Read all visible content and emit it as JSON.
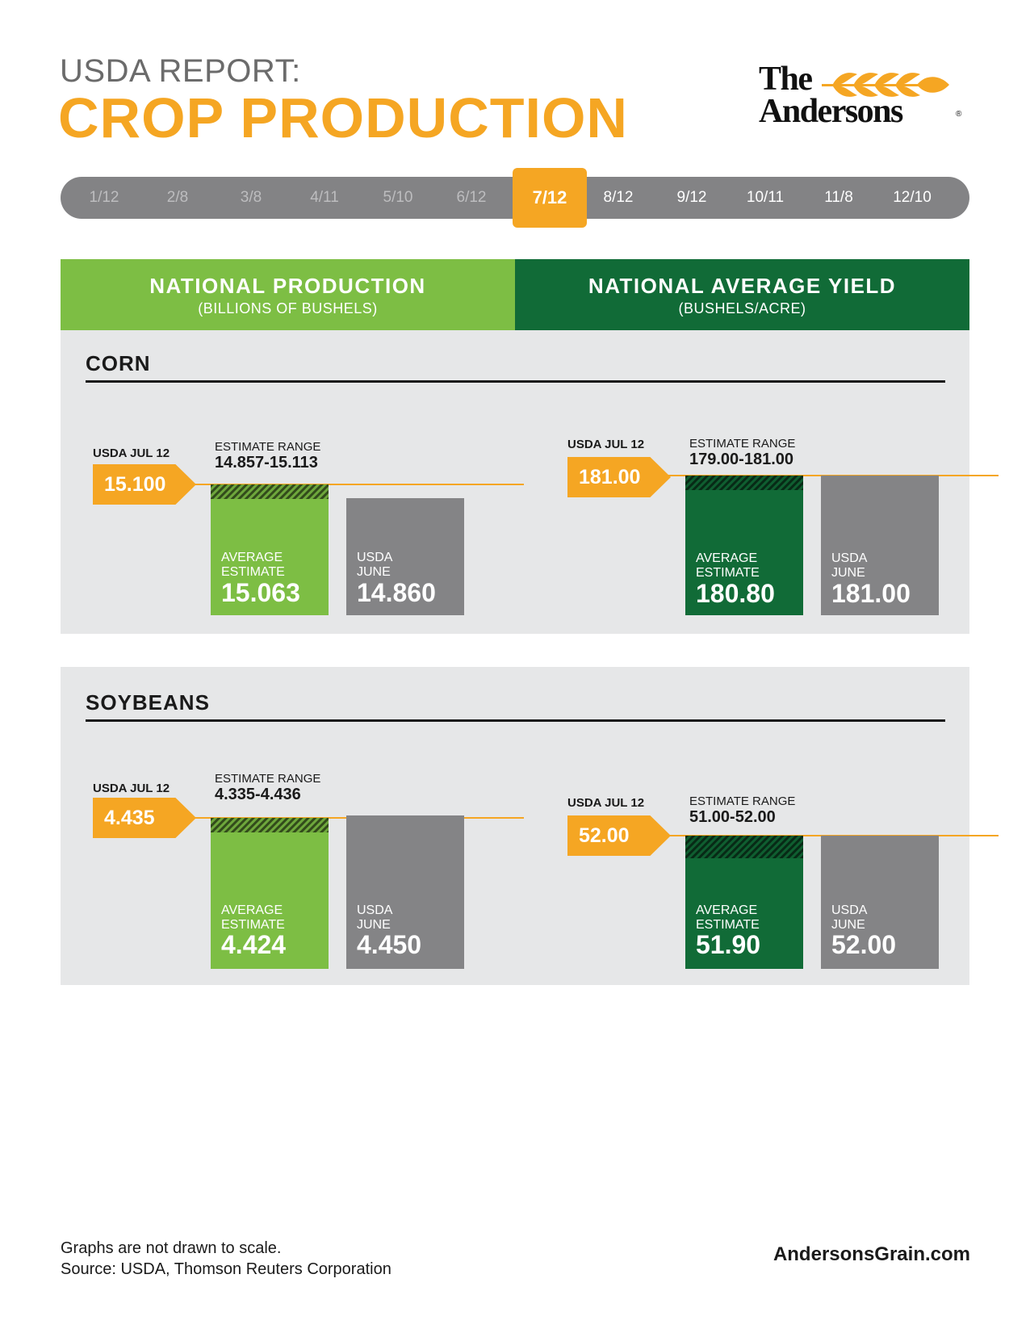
{
  "header": {
    "subtitle": "USDA REPORT:",
    "title": "CROP PRODUCTION",
    "logo_text": "The\nAndersons"
  },
  "timeline": {
    "dates": [
      "1/12",
      "2/8",
      "3/8",
      "4/11",
      "5/10",
      "6/12",
      "7/12",
      "8/12",
      "9/12",
      "10/11",
      "11/8",
      "12/10"
    ],
    "active": "7/12"
  },
  "columns": {
    "production": {
      "title": "NATIONAL PRODUCTION",
      "unit": "(BILLIONS OF BUSHELS)"
    },
    "yield": {
      "title": "NATIONAL AVERAGE YIELD",
      "unit": "(BUSHELS/ACRE)"
    }
  },
  "colors": {
    "accent": "#f5a623",
    "production_green": "#7dbe44",
    "yield_green": "#116b37",
    "usda_gray": "#848486",
    "panel_bg": "#e6e7e8"
  },
  "labels": {
    "usda_current": "USDA JUL 12",
    "estimate_range": "ESTIMATE RANGE",
    "average_estimate": "AVERAGE\nESTIMATE",
    "usda_june": "USDA\nJUNE"
  },
  "chart_data": [
    {
      "type": "bar",
      "crop": "CORN",
      "measure": "NATIONAL PRODUCTION",
      "usda_jul12": "15.100",
      "estimate_range": "14.857-15.113",
      "categories": [
        "AVERAGE ESTIMATE",
        "USDA JUNE"
      ],
      "values": [
        "15.063",
        "14.860"
      ]
    },
    {
      "type": "bar",
      "crop": "CORN",
      "measure": "NATIONAL AVERAGE YIELD",
      "usda_jul12": "181.00",
      "estimate_range": "179.00-181.00",
      "categories": [
        "AVERAGE ESTIMATE",
        "USDA JUNE"
      ],
      "values": [
        "180.80",
        "181.00"
      ]
    },
    {
      "type": "bar",
      "crop": "SOYBEANS",
      "measure": "NATIONAL PRODUCTION",
      "usda_jul12": "4.435",
      "estimate_range": "4.335-4.436",
      "categories": [
        "AVERAGE ESTIMATE",
        "USDA JUNE"
      ],
      "values": [
        "4.424",
        "4.450"
      ]
    },
    {
      "type": "bar",
      "crop": "SOYBEANS",
      "measure": "NATIONAL AVERAGE YIELD",
      "usda_jul12": "52.00",
      "estimate_range": "51.00-52.00",
      "categories": [
        "AVERAGE ESTIMATE",
        "USDA JUNE"
      ],
      "values": [
        "51.90",
        "52.00"
      ]
    }
  ],
  "footer": {
    "note": "Graphs are not drawn to scale.",
    "source": "Source: USDA, Thomson Reuters Corporation",
    "website": "AndersonsGrain.com"
  }
}
